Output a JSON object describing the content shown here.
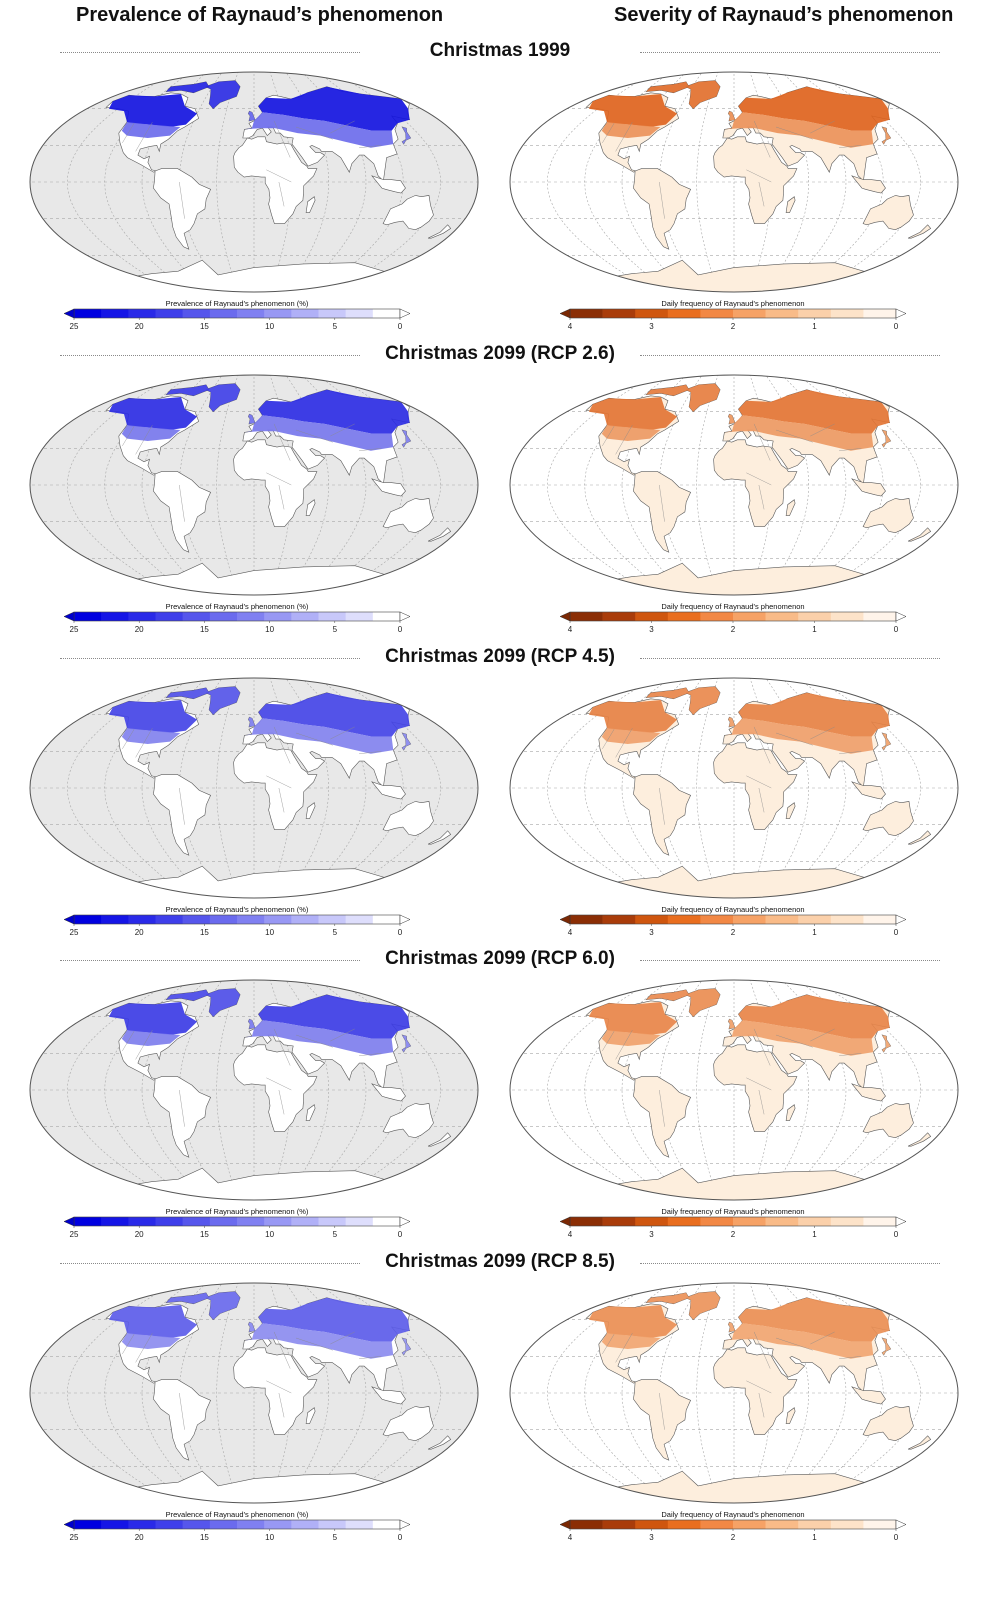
{
  "headers": {
    "left": "Prevalence of Raynaud’s phenomenon",
    "right": "Severity of Raynaud’s phenomenon"
  },
  "rows": [
    {
      "label": "Christmas 1999",
      "left_level": 1.0,
      "right_level": 1.0
    },
    {
      "label": "Christmas 2099 (RCP 2.6)",
      "left_level": 0.85,
      "right_level": 0.8
    },
    {
      "label": "Christmas 2099 (RCP 4.5)",
      "left_level": 0.7,
      "right_level": 0.65
    },
    {
      "label": "Christmas 2099 (RCP 6.0)",
      "left_level": 0.75,
      "right_level": 0.6
    },
    {
      "label": "Christmas 2099 (RCP 8.5)",
      "left_level": 0.55,
      "right_level": 0.5
    }
  ],
  "legends": {
    "prevalence": {
      "title": "Prevalence of Raynaud's phenomenon (%)",
      "ticks": [
        "25",
        "20",
        "15",
        "10",
        "5",
        "0"
      ],
      "colors": [
        "#0000e0",
        "#1515e6",
        "#2a2ae8",
        "#3f3fea",
        "#5656ec",
        "#6b6bee",
        "#8080f1",
        "#9898f4",
        "#b0b0f7",
        "#c8c8fa",
        "#dedefc",
        "#ffffff"
      ],
      "arrow_color": "#0000cc"
    },
    "severity": {
      "title": "Daily frequency of Raynaud's phenomenon",
      "ticks": [
        "4",
        "3",
        "2",
        "1",
        "0"
      ],
      "colors": [
        "#8b2e05",
        "#a93c0a",
        "#cf560f",
        "#e96e1f",
        "#f28845",
        "#f6a266",
        "#f9bb88",
        "#fbd0aa",
        "#fde3c9",
        "#fff4ea"
      ],
      "arrow_color": "#7a2804"
    }
  },
  "map_colors": {
    "ocean_left": "#e8e8e8",
    "ocean_right": "#ffffff",
    "land_base_left": "#ffffff",
    "land_base_right": "#fdeedd",
    "blue_strong": "#1414e0",
    "blue_light": "#b4b4f4",
    "orange_strong": "#de6420",
    "orange_light": "#f6b98a"
  }
}
